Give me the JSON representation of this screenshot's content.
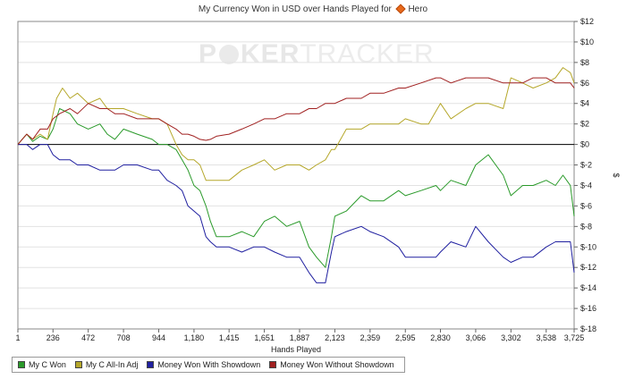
{
  "header": {
    "title": "My Currency Won in USD over Hands Played for",
    "player": "Hero"
  },
  "watermark": {
    "part1": "P",
    "part2": "KER",
    "part3": "TRACKER"
  },
  "chart_data": {
    "type": "line",
    "xlabel": "Hands Played",
    "ylabel": "$",
    "xlim": [
      1,
      3725
    ],
    "ylim": [
      -18,
      12
    ],
    "x_ticks": [
      1,
      236,
      472,
      708,
      944,
      1180,
      1415,
      1651,
      1887,
      2123,
      2359,
      2595,
      2830,
      3066,
      3302,
      3538,
      3725
    ],
    "x_tick_labels": [
      "1",
      "236",
      "472",
      "708",
      "944",
      "1,180",
      "1,415",
      "1,651",
      "1,887",
      "2,123",
      "2,359",
      "2,595",
      "2,830",
      "3,066",
      "3,302",
      "3,538",
      "3,725"
    ],
    "y_ticks": [
      -18,
      -16,
      -14,
      -12,
      -10,
      -8,
      -6,
      -4,
      -2,
      0,
      2,
      4,
      6,
      8,
      10,
      12
    ],
    "y_tick_labels": [
      "$-18",
      "$-16",
      "$-14",
      "$-12",
      "$-10",
      "$-8",
      "$-6",
      "$-4",
      "$-2",
      "$0",
      "$2",
      "$4",
      "$6",
      "$8",
      "$10",
      "$12"
    ],
    "grid": "horizontal",
    "legend": "bottom-left",
    "series": [
      {
        "name": "My C Won",
        "color": "#2a9a2a",
        "x": [
          1,
          30,
          60,
          100,
          150,
          200,
          236,
          280,
          350,
          400,
          472,
          550,
          600,
          650,
          708,
          800,
          900,
          944,
          1000,
          1060,
          1100,
          1140,
          1180,
          1220,
          1260,
          1290,
          1330,
          1415,
          1500,
          1580,
          1651,
          1720,
          1800,
          1887,
          1950,
          2000,
          2060,
          2100,
          2123,
          2200,
          2300,
          2359,
          2450,
          2550,
          2595,
          2700,
          2800,
          2830,
          2900,
          3000,
          3066,
          3150,
          3250,
          3302,
          3380,
          3450,
          3538,
          3600,
          3650,
          3700,
          3725
        ],
        "y": [
          0,
          0.5,
          1,
          0.3,
          0.8,
          0.5,
          1.5,
          3.5,
          3,
          2,
          1.5,
          2,
          1,
          0.5,
          1.5,
          1,
          0.5,
          0,
          0,
          -0.5,
          -1.5,
          -2.5,
          -4,
          -4.5,
          -6,
          -7.5,
          -9,
          -9,
          -8.5,
          -9,
          -7.5,
          -7,
          -8,
          -7.5,
          -10,
          -11,
          -12,
          -9,
          -7,
          -6.5,
          -5,
          -5.5,
          -5.5,
          -4.5,
          -5,
          -4.5,
          -4,
          -4.5,
          -3.5,
          -4,
          -2,
          -1,
          -3,
          -5,
          -4,
          -4,
          -3.5,
          -4,
          -3,
          -4,
          -7
        ]
      },
      {
        "name": "My C All-In Adj",
        "color": "#b5a72a",
        "x": [
          1,
          30,
          60,
          100,
          150,
          200,
          236,
          260,
          300,
          350,
          400,
          472,
          550,
          600,
          650,
          708,
          800,
          900,
          944,
          1000,
          1060,
          1100,
          1140,
          1180,
          1220,
          1260,
          1290,
          1330,
          1415,
          1500,
          1580,
          1651,
          1720,
          1800,
          1887,
          1950,
          2000,
          2060,
          2100,
          2123,
          2200,
          2300,
          2359,
          2450,
          2550,
          2595,
          2700,
          2750,
          2830,
          2900,
          3000,
          3066,
          3150,
          3250,
          3302,
          3380,
          3450,
          3538,
          3600,
          3650,
          3700,
          3725
        ],
        "y": [
          0,
          0.5,
          1,
          0.5,
          1,
          0.5,
          3,
          4.5,
          5.5,
          4.5,
          5,
          4,
          4.5,
          3.5,
          3.5,
          3.5,
          3,
          2.5,
          2.5,
          2,
          0,
          -1,
          -1.5,
          -1.5,
          -2,
          -3.5,
          -3.5,
          -3.5,
          -3.5,
          -2.5,
          -2,
          -1.5,
          -2.5,
          -2,
          -2,
          -2.5,
          -2,
          -1.5,
          -0.5,
          -0.5,
          1.5,
          1.5,
          2,
          2,
          2,
          2.5,
          2,
          2,
          4,
          2.5,
          3.5,
          4,
          4,
          3.5,
          6.5,
          6,
          5.5,
          6,
          6.5,
          7.5,
          7,
          6
        ]
      },
      {
        "name": "Money Won With Showdown",
        "color": "#2020a0",
        "x": [
          1,
          30,
          60,
          100,
          150,
          200,
          236,
          280,
          350,
          400,
          472,
          550,
          600,
          650,
          708,
          800,
          900,
          944,
          1000,
          1060,
          1100,
          1140,
          1180,
          1220,
          1260,
          1290,
          1330,
          1415,
          1500,
          1580,
          1651,
          1720,
          1800,
          1887,
          1950,
          2000,
          2060,
          2100,
          2123,
          2200,
          2300,
          2359,
          2450,
          2550,
          2595,
          2700,
          2800,
          2830,
          2900,
          3000,
          3066,
          3150,
          3250,
          3302,
          3380,
          3450,
          3538,
          3600,
          3650,
          3700,
          3725
        ],
        "y": [
          0,
          0,
          0,
          -0.5,
          0,
          0,
          -1,
          -1.5,
          -1.5,
          -2,
          -2,
          -2.5,
          -2.5,
          -2.5,
          -2,
          -2,
          -2.5,
          -2.5,
          -3.5,
          -4,
          -4.5,
          -6,
          -6.5,
          -7,
          -9,
          -9.5,
          -10,
          -10,
          -10.5,
          -10,
          -10,
          -10.5,
          -11,
          -11,
          -12.5,
          -13.5,
          -13.5,
          -10.5,
          -9,
          -8.5,
          -8,
          -8.5,
          -9,
          -10,
          -11,
          -11,
          -11,
          -10.5,
          -9.5,
          -10,
          -8,
          -9.5,
          -11,
          -11.5,
          -11,
          -11,
          -10,
          -9.5,
          -9.5,
          -9.5,
          -12.5
        ]
      },
      {
        "name": "Money Won Without Showdown",
        "color": "#a02020",
        "x": [
          1,
          30,
          60,
          100,
          150,
          200,
          236,
          280,
          350,
          400,
          472,
          550,
          600,
          650,
          708,
          800,
          900,
          944,
          1000,
          1060,
          1100,
          1140,
          1180,
          1220,
          1260,
          1290,
          1330,
          1415,
          1500,
          1580,
          1651,
          1720,
          1800,
          1887,
          1950,
          2000,
          2060,
          2100,
          2123,
          2200,
          2300,
          2359,
          2450,
          2550,
          2595,
          2700,
          2800,
          2830,
          2900,
          3000,
          3066,
          3150,
          3250,
          3302,
          3380,
          3450,
          3538,
          3600,
          3650,
          3700,
          3725
        ],
        "y": [
          0,
          0.5,
          1,
          0.5,
          1.5,
          1.5,
          2.5,
          3,
          3.5,
          3,
          4,
          3.5,
          3.5,
          3,
          3,
          2.5,
          2.5,
          2.5,
          2,
          1.5,
          1,
          1,
          0.8,
          0.5,
          0.4,
          0.5,
          0.8,
          1,
          1.5,
          2,
          2.5,
          2.5,
          3,
          3,
          3.5,
          3.5,
          4,
          4,
          4,
          4.5,
          4.5,
          5,
          5,
          5.5,
          5.5,
          6,
          6.5,
          6.5,
          6,
          6.5,
          6.5,
          6.5,
          6,
          6,
          6,
          6.5,
          6.5,
          6,
          6,
          6,
          5.5
        ]
      }
    ]
  }
}
